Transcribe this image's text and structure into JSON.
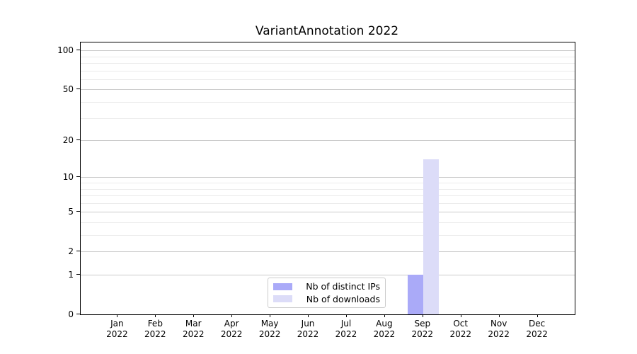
{
  "chart_data": {
    "type": "bar",
    "title": "VariantAnnotation 2022",
    "categories": [
      "Jan",
      "Feb",
      "Mar",
      "Apr",
      "May",
      "Jun",
      "Jul",
      "Aug",
      "Sep",
      "Oct",
      "Nov",
      "Dec"
    ],
    "year_label": "2022",
    "series": [
      {
        "name": "Nb of distinct IPs",
        "color": "#aaaaf8",
        "values": [
          0,
          0,
          0,
          0,
          0,
          0,
          0,
          0,
          1,
          0,
          0,
          0
        ]
      },
      {
        "name": "Nb of downloads",
        "color": "#dcdcf8",
        "values": [
          0,
          0,
          0,
          0,
          0,
          0,
          0,
          0,
          14,
          0,
          0,
          0
        ]
      }
    ],
    "xlabel": "",
    "ylabel": "",
    "yscale": "log1p",
    "ylim": [
      0,
      115
    ],
    "yticks": [
      0,
      1,
      2,
      5,
      10,
      20,
      50,
      100
    ],
    "minor_yticks": [
      3,
      4,
      6,
      7,
      8,
      9,
      30,
      40,
      60,
      70,
      80,
      90
    ],
    "grid": "horizontal",
    "legend_position": "lower-center",
    "colors": {
      "major_grid": "#c9c9c9",
      "minor_grid": "#ebebeb",
      "axis": "#000000",
      "text": "#000000",
      "background": "#ffffff"
    }
  }
}
